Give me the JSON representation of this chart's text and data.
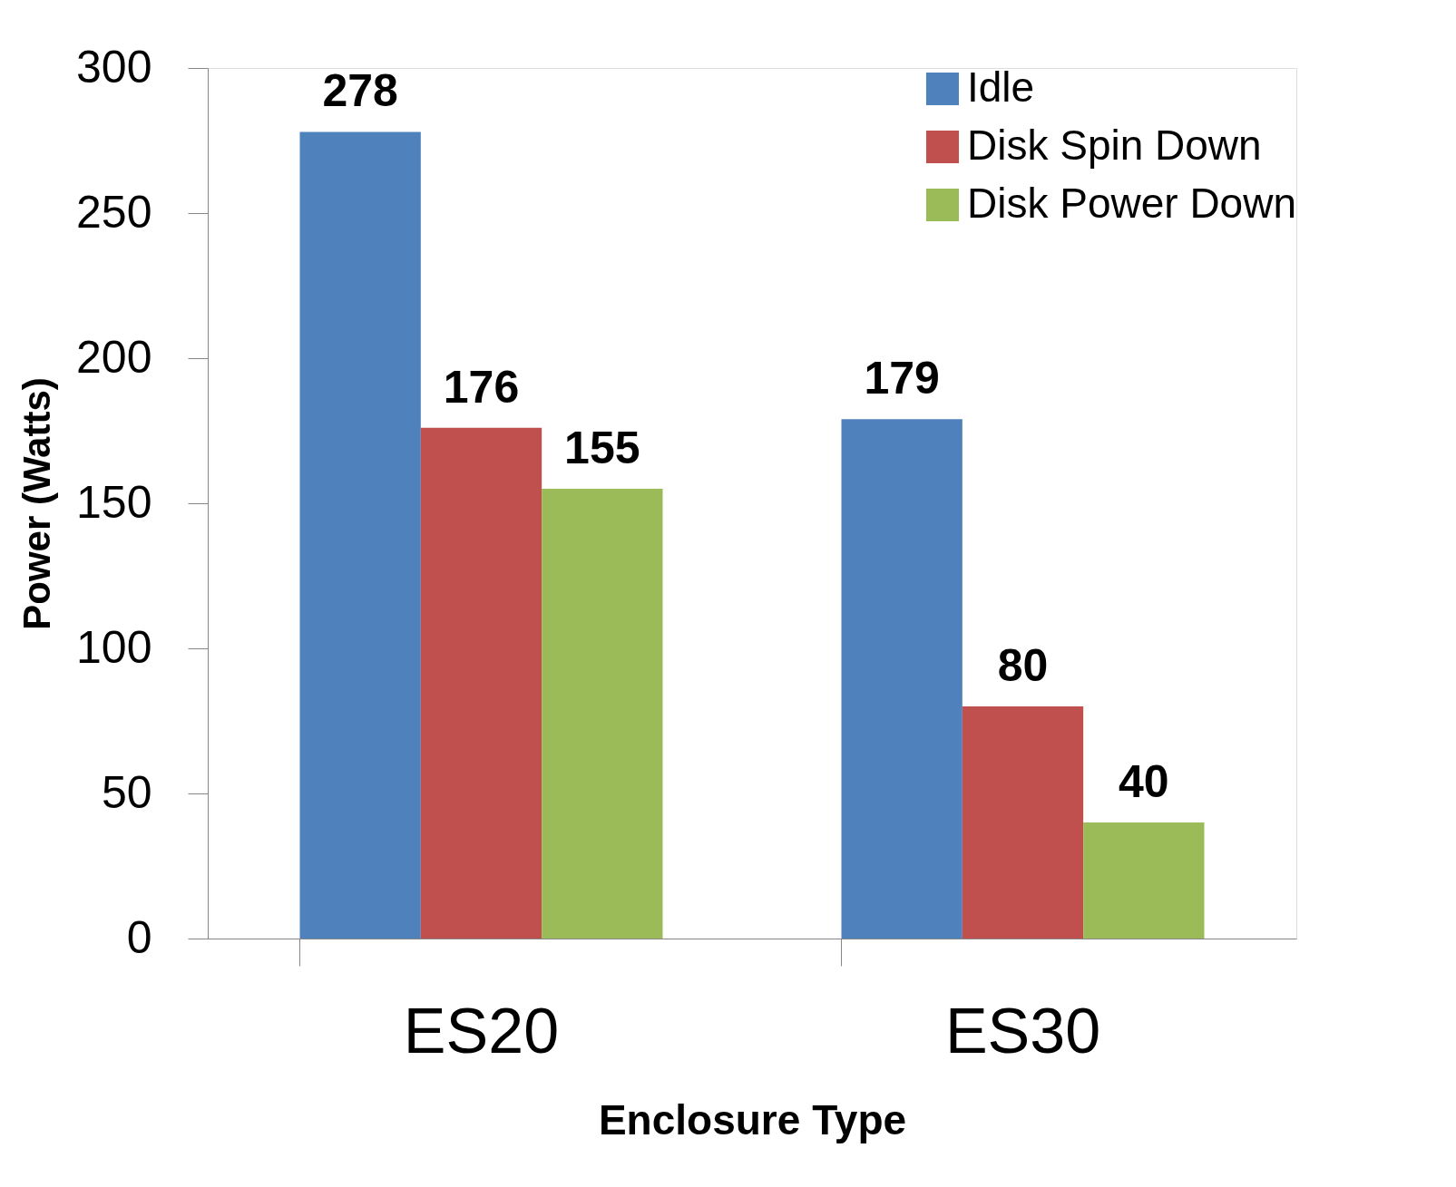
{
  "chart_data": {
    "type": "bar",
    "xlabel": "Enclosure Type",
    "ylabel": "Power (Watts)",
    "categories": [
      "ES20",
      "ES30"
    ],
    "series": [
      {
        "name": "Idle",
        "color": "#4f81bd",
        "values": [
          278,
          179
        ]
      },
      {
        "name": "Disk Spin Down",
        "color": "#c0504d",
        "values": [
          176,
          80
        ]
      },
      {
        "name": "Disk Power Down",
        "color": "#9bbb59",
        "values": [
          155,
          40
        ]
      }
    ],
    "ylim": [
      0,
      300
    ],
    "yticks": [
      0,
      50,
      100,
      150,
      200,
      250,
      300
    ],
    "grid": false,
    "legend": "top right",
    "data_labels": true
  }
}
